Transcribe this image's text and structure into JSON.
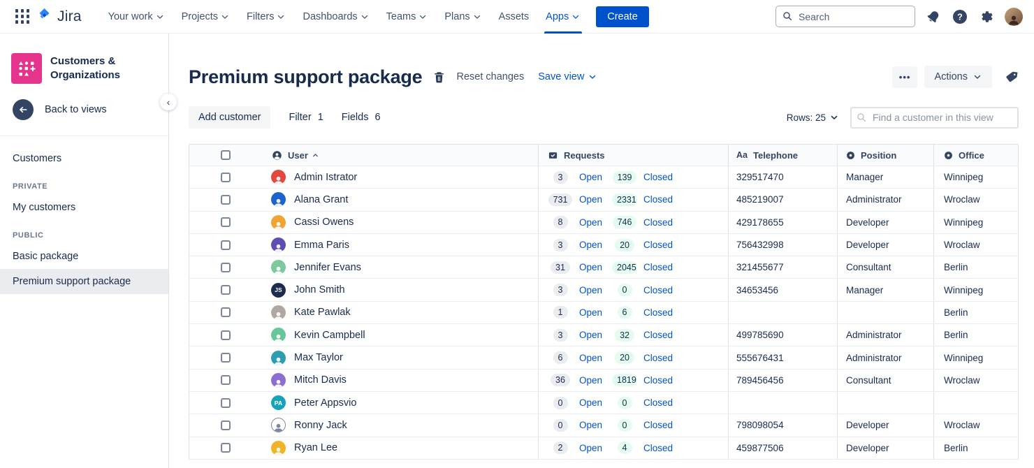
{
  "topnav": {
    "logo": "Jira",
    "menu": [
      {
        "label": "Your work",
        "caret": true,
        "active": false
      },
      {
        "label": "Projects",
        "caret": true,
        "active": false
      },
      {
        "label": "Filters",
        "caret": true,
        "active": false
      },
      {
        "label": "Dashboards",
        "caret": true,
        "active": false
      },
      {
        "label": "Teams",
        "caret": true,
        "active": false
      },
      {
        "label": "Plans",
        "caret": true,
        "active": false
      },
      {
        "label": "Assets",
        "caret": false,
        "active": false
      },
      {
        "label": "Apps",
        "caret": true,
        "active": true
      }
    ],
    "create_label": "Create",
    "search_placeholder": "Search"
  },
  "sidebar": {
    "project_name": "Customers & Organizations",
    "back_label": "Back to views",
    "customers_label": "Customers",
    "sections": [
      {
        "heading": "PRIVATE",
        "items": [
          {
            "label": "My customers",
            "active": false
          }
        ]
      },
      {
        "heading": "PUBLIC",
        "items": [
          {
            "label": "Basic package",
            "active": false
          },
          {
            "label": "Premium support package",
            "active": true
          }
        ]
      }
    ]
  },
  "header": {
    "title": "Premium support package",
    "reset_label": "Reset changes",
    "save_view_label": "Save view",
    "actions_label": "Actions",
    "more_label": "•••"
  },
  "toolbar": {
    "add_customer_label": "Add customer",
    "filter_label": "Filter",
    "filter_count": "1",
    "fields_label": "Fields",
    "fields_count": "6",
    "rows_label": "Rows: 25",
    "find_placeholder": "Find a customer in this view"
  },
  "table": {
    "columns": [
      "User",
      "Requests",
      "Telephone",
      "Position",
      "Office"
    ],
    "open_label": "Open",
    "closed_label": "Closed",
    "rows": [
      {
        "name": "Admin Istrator",
        "avatar_type": "person",
        "avatar_color": "#E2483D",
        "avatar_initials": "",
        "open": "3",
        "closed": "139",
        "telephone": "329517470",
        "position": "Manager",
        "office": "Winnipeg"
      },
      {
        "name": "Alana Grant",
        "avatar_type": "person",
        "avatar_color": "#1D63CE",
        "avatar_initials": "",
        "open": "731",
        "closed": "2331",
        "telephone": "485219007",
        "position": "Administrator",
        "office": "Wroclaw"
      },
      {
        "name": "Cassi Owens",
        "avatar_type": "person",
        "avatar_color": "#F0A433",
        "avatar_initials": "",
        "open": "8",
        "closed": "746",
        "telephone": "429178655",
        "position": "Developer",
        "office": "Winnipeg"
      },
      {
        "name": "Emma Paris",
        "avatar_type": "person",
        "avatar_color": "#5E4DB2",
        "avatar_initials": "",
        "open": "3",
        "closed": "20",
        "telephone": "756432998",
        "position": "Developer",
        "office": "Wroclaw"
      },
      {
        "name": "Jennifer Evans",
        "avatar_type": "person",
        "avatar_color": "#7FC89E",
        "avatar_initials": "",
        "open": "31",
        "closed": "2045",
        "telephone": "321455677",
        "position": "Consultant",
        "office": "Berlin"
      },
      {
        "name": "John Smith",
        "avatar_type": "initials",
        "avatar_color": "#1D2B50",
        "avatar_initials": "JS",
        "open": "3",
        "closed": "0",
        "telephone": "34653456",
        "position": "Manager",
        "office": "Winnipeg"
      },
      {
        "name": "Kate Pawlak",
        "avatar_type": "person",
        "avatar_color": "#AFA8A2",
        "avatar_initials": "",
        "open": "1",
        "closed": "6",
        "telephone": "",
        "position": "",
        "office": "Berlin"
      },
      {
        "name": "Kevin Campbell",
        "avatar_type": "person",
        "avatar_color": "#67C79B",
        "avatar_initials": "",
        "open": "3",
        "closed": "32",
        "telephone": "499785690",
        "position": "Administrator",
        "office": "Berlin"
      },
      {
        "name": "Max Taylor",
        "avatar_type": "person",
        "avatar_color": "#2E9CB0",
        "avatar_initials": "",
        "open": "6",
        "closed": "20",
        "telephone": "555676431",
        "position": "Administrator",
        "office": "Winnipeg"
      },
      {
        "name": "Mitch Davis",
        "avatar_type": "person",
        "avatar_color": "#8A6FD1",
        "avatar_initials": "",
        "open": "36",
        "closed": "1819",
        "telephone": "789456456",
        "position": "Consultant",
        "office": "Wroclaw"
      },
      {
        "name": "Peter Appsvio",
        "avatar_type": "initials",
        "avatar_color": "#17A2B8",
        "avatar_initials": "PA",
        "open": "0",
        "closed": "0",
        "telephone": "",
        "position": "",
        "office": ""
      },
      {
        "name": "Ronny Jack",
        "avatar_type": "default",
        "avatar_color": "#FFFFFF",
        "avatar_initials": "",
        "open": "0",
        "closed": "0",
        "telephone": "798098054",
        "position": "Developer",
        "office": "Wroclaw"
      },
      {
        "name": "Ryan Lee",
        "avatar_type": "person",
        "avatar_color": "#F0B429",
        "avatar_initials": "",
        "open": "2",
        "closed": "4",
        "telephone": "459877506",
        "position": "Developer",
        "office": "Berlin"
      }
    ]
  },
  "colors": {
    "accent_blue": "#0052CC",
    "navy_text": "#172B4D",
    "project_pink": "#E5348C",
    "open_pill_bg": "#EBECF0",
    "closed_pill_bg": "#E3FCEF",
    "active_item_bg": "#EBECF0"
  }
}
